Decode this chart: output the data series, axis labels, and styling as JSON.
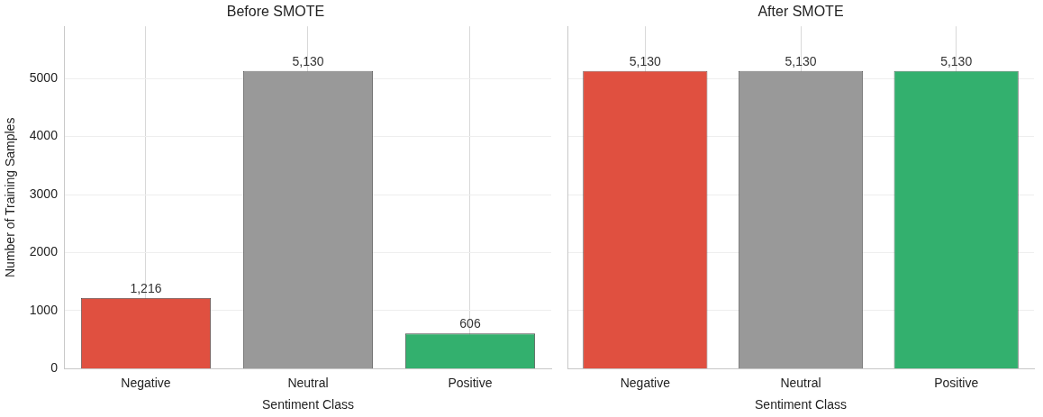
{
  "chart_data": [
    {
      "type": "bar",
      "title": "Before SMOTE",
      "xlabel": "Sentiment Class",
      "ylabel": "Number of Training Samples",
      "categories": [
        "Negative",
        "Neutral",
        "Positive"
      ],
      "values": [
        1216,
        5130,
        606
      ],
      "colors": [
        "#e05040",
        "#999999",
        "#33b06e"
      ],
      "value_labels": [
        "1,216",
        "5,130",
        "606"
      ],
      "ylim": [
        0,
        5900
      ],
      "yticks": [
        0,
        1000,
        2000,
        3000,
        4000,
        5000
      ],
      "grid": true
    },
    {
      "type": "bar",
      "title": "After SMOTE",
      "xlabel": "Sentiment Class",
      "categories": [
        "Negative",
        "Neutral",
        "Positive"
      ],
      "values": [
        5130,
        5130,
        5130
      ],
      "colors": [
        "#e05040",
        "#999999",
        "#33b06e"
      ],
      "value_labels": [
        "5,130",
        "5,130",
        "5,130"
      ],
      "ylim": [
        0,
        5900
      ],
      "yticks": [
        0,
        1000,
        2000,
        3000,
        4000,
        5000
      ],
      "grid": true,
      "tick_labels": "x"
    }
  ]
}
